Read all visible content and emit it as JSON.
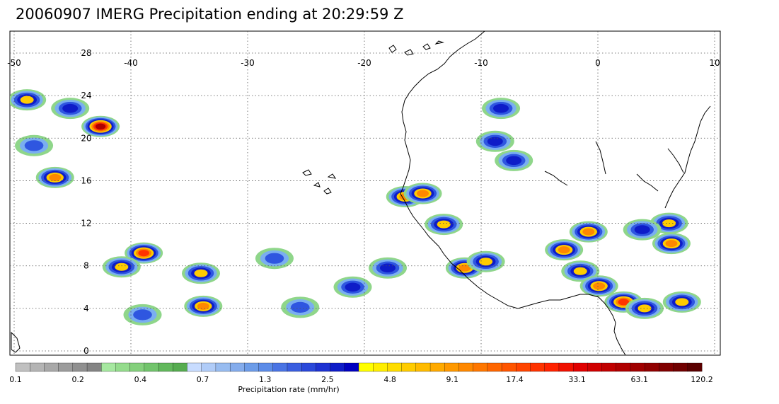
{
  "title": "20060907 IMERG Precipitation ending at 20:29:59 Z",
  "map": {
    "lon_range": [
      -50,
      10
    ],
    "lat_range": [
      -0.5,
      30
    ],
    "lon_ticks": [
      "-50",
      "-40",
      "-30",
      "-20",
      "-10",
      "0",
      "10"
    ],
    "lat_ticks": [
      "0",
      "4",
      "8",
      "12",
      "16",
      "20",
      "24",
      "28"
    ],
    "grid": "dotted",
    "coastline_color": "#000000",
    "rain_cells": [
      {
        "lon": -48.9,
        "lat": 23.6,
        "max_rate": 9.1
      },
      {
        "lon": -45.2,
        "lat": 22.8,
        "max_rate": 4.8
      },
      {
        "lon": -42.6,
        "lat": 21.1,
        "max_rate": 63.1
      },
      {
        "lon": -48.3,
        "lat": 19.3,
        "max_rate": 2.5
      },
      {
        "lon": -46.5,
        "lat": 16.3,
        "max_rate": 17.4
      },
      {
        "lon": -38.9,
        "lat": 9.2,
        "max_rate": 33.1
      },
      {
        "lon": -40.8,
        "lat": 7.9,
        "max_rate": 9.1
      },
      {
        "lon": -34.0,
        "lat": 7.3,
        "max_rate": 9.1
      },
      {
        "lon": -33.8,
        "lat": 4.2,
        "max_rate": 17.4
      },
      {
        "lon": -39.0,
        "lat": 3.4,
        "max_rate": 2.5
      },
      {
        "lon": -27.7,
        "lat": 8.7,
        "max_rate": 2.5
      },
      {
        "lon": -25.5,
        "lat": 4.1,
        "max_rate": 2.5
      },
      {
        "lon": -18.0,
        "lat": 7.8,
        "max_rate": 4.8
      },
      {
        "lon": -16.5,
        "lat": 14.5,
        "max_rate": 17.4
      },
      {
        "lon": -15.0,
        "lat": 14.8,
        "max_rate": 17.4
      },
      {
        "lon": -13.2,
        "lat": 11.9,
        "max_rate": 9.1
      },
      {
        "lon": -11.4,
        "lat": 7.8,
        "max_rate": 17.4
      },
      {
        "lon": -9.6,
        "lat": 8.4,
        "max_rate": 9.1
      },
      {
        "lon": -8.3,
        "lat": 22.8,
        "max_rate": 4.8
      },
      {
        "lon": -8.8,
        "lat": 19.7,
        "max_rate": 4.8
      },
      {
        "lon": -7.2,
        "lat": 17.9,
        "max_rate": 4.8
      },
      {
        "lon": -2.9,
        "lat": 9.5,
        "max_rate": 17.4
      },
      {
        "lon": -1.5,
        "lat": 7.5,
        "max_rate": 9.1
      },
      {
        "lon": -0.8,
        "lat": 11.2,
        "max_rate": 17.4
      },
      {
        "lon": 0.1,
        "lat": 6.1,
        "max_rate": 17.4
      },
      {
        "lon": 2.2,
        "lat": 4.6,
        "max_rate": 33.1
      },
      {
        "lon": 4.0,
        "lat": 4.0,
        "max_rate": 9.1
      },
      {
        "lon": 6.3,
        "lat": 10.1,
        "max_rate": 17.4
      },
      {
        "lon": 7.2,
        "lat": 4.6,
        "max_rate": 9.1
      },
      {
        "lon": 6.1,
        "lat": 12.0,
        "max_rate": 9.1
      },
      {
        "lon": 3.8,
        "lat": 11.4,
        "max_rate": 4.8
      },
      {
        "lon": -21.0,
        "lat": 6.0,
        "max_rate": 4.8
      }
    ]
  },
  "colorbar": {
    "label": "Precipitation rate (mm/hr)",
    "tick_labels": [
      "0.1",
      "0.2",
      "0.4",
      "0.7",
      "1.3",
      "2.5",
      "4.8",
      "9.1",
      "17.4",
      "33.1",
      "63.1",
      "120.2"
    ],
    "colors": [
      "#c0c0c0",
      "#b4b4b4",
      "#a8a8a8",
      "#9c9c9c",
      "#909090",
      "#848484",
      "#a6e8a0",
      "#94dc8c",
      "#84d07c",
      "#72c46c",
      "#62b85c",
      "#56ac50",
      "#c8dcff",
      "#b0ccf8",
      "#98bcf0",
      "#84acec",
      "#6c9ce8",
      "#5c8ce8",
      "#4a74e4",
      "#3a5ee0",
      "#2a48da",
      "#1e32d2",
      "#0e1cc8",
      "#0000c0",
      "#ffff00",
      "#ffee00",
      "#ffdd00",
      "#ffcc00",
      "#ffbb00",
      "#ffaa00",
      "#ff9900",
      "#ff8800",
      "#ff7700",
      "#ff6600",
      "#ff5500",
      "#ff4400",
      "#ff3300",
      "#ff2200",
      "#f01000",
      "#e00000",
      "#d00000",
      "#c00000",
      "#b00000",
      "#a00000",
      "#900000",
      "#800000",
      "#700000",
      "#5a0000"
    ]
  }
}
